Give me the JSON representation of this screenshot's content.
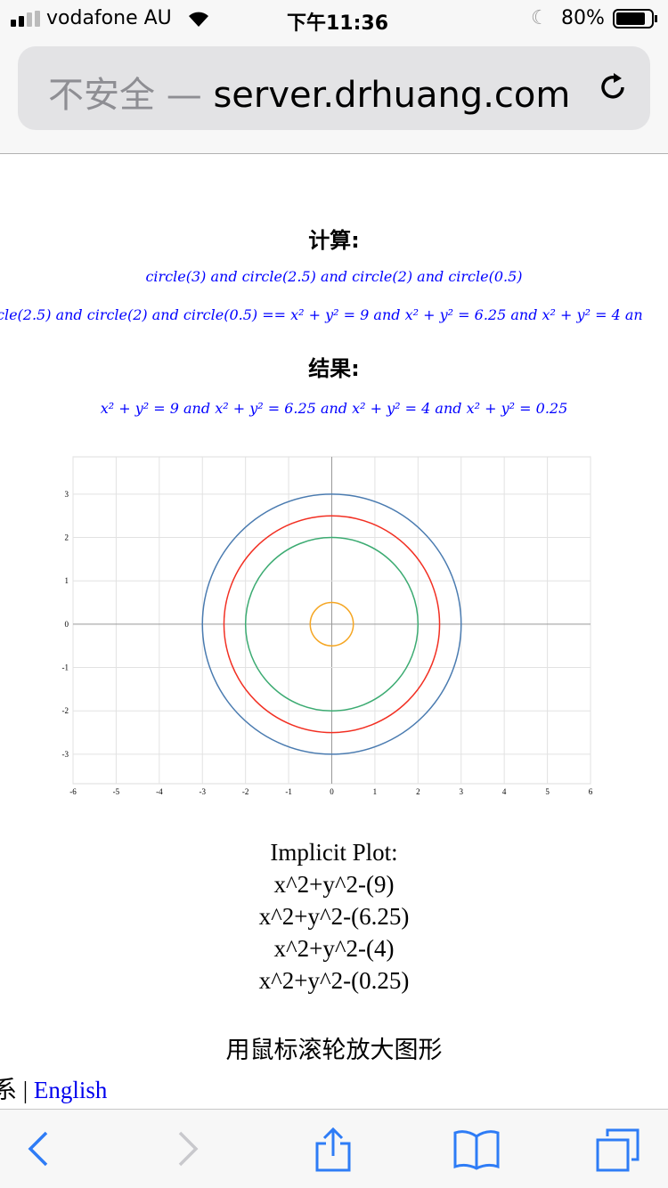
{
  "status_bar": {
    "carrier": "vodafone AU",
    "time": "下午11:36",
    "battery": "80%"
  },
  "url_bar": {
    "insecure_label": "不安全 —",
    "domain": "server.drhuang.com"
  },
  "content": {
    "compute_heading": "计算:",
    "input_expr": "circle(3) and circle(2.5) and circle(2) and circle(0.5)",
    "expanded_expr": "cle(2.5) and circle(2) and circle(0.5) == x² + y² = 9 and x² + y² = 6.25 and x² + y² = 4 an",
    "result_heading": "结果:",
    "result_expr": "x² + y² = 9 and x² + y² = 6.25 and x² + y² = 4 and x² + y² = 0.25",
    "plot_caption": [
      "Implicit Plot:",
      "x^2+y^2-(9)",
      "x^2+y^2-(6.25)",
      "x^2+y^2-(4)",
      "x^2+y^2-(0.25)"
    ],
    "zoom_hint": "用鼠标滚轮放大图形",
    "lang_prefix": "系 | ",
    "lang_link": "English"
  },
  "chart_data": {
    "type": "line",
    "xlim": [
      -6,
      6
    ],
    "ylim": [
      -3.68,
      3.86
    ],
    "xticks": [
      -6,
      -5,
      -4,
      -3,
      -2,
      -1,
      0,
      1,
      2,
      3,
      4,
      5,
      6
    ],
    "yticks": [
      -3,
      -2,
      -1,
      0,
      1,
      2,
      3
    ],
    "grid": true,
    "series": [
      {
        "equation": "x^2+y^2=9",
        "radius": 3,
        "color": "#4a7bb0"
      },
      {
        "equation": "x^2+y^2=6.25",
        "radius": 2.5,
        "color": "#f22f22"
      },
      {
        "equation": "x^2+y^2=4",
        "radius": 2,
        "color": "#3cab72"
      },
      {
        "equation": "x^2+y^2=0.25",
        "radius": 0.5,
        "color": "#f5a623"
      }
    ]
  },
  "toolbar": {
    "icons": [
      "back-icon",
      "forward-icon",
      "share-icon",
      "bookmarks-icon",
      "tabs-icon"
    ]
  }
}
